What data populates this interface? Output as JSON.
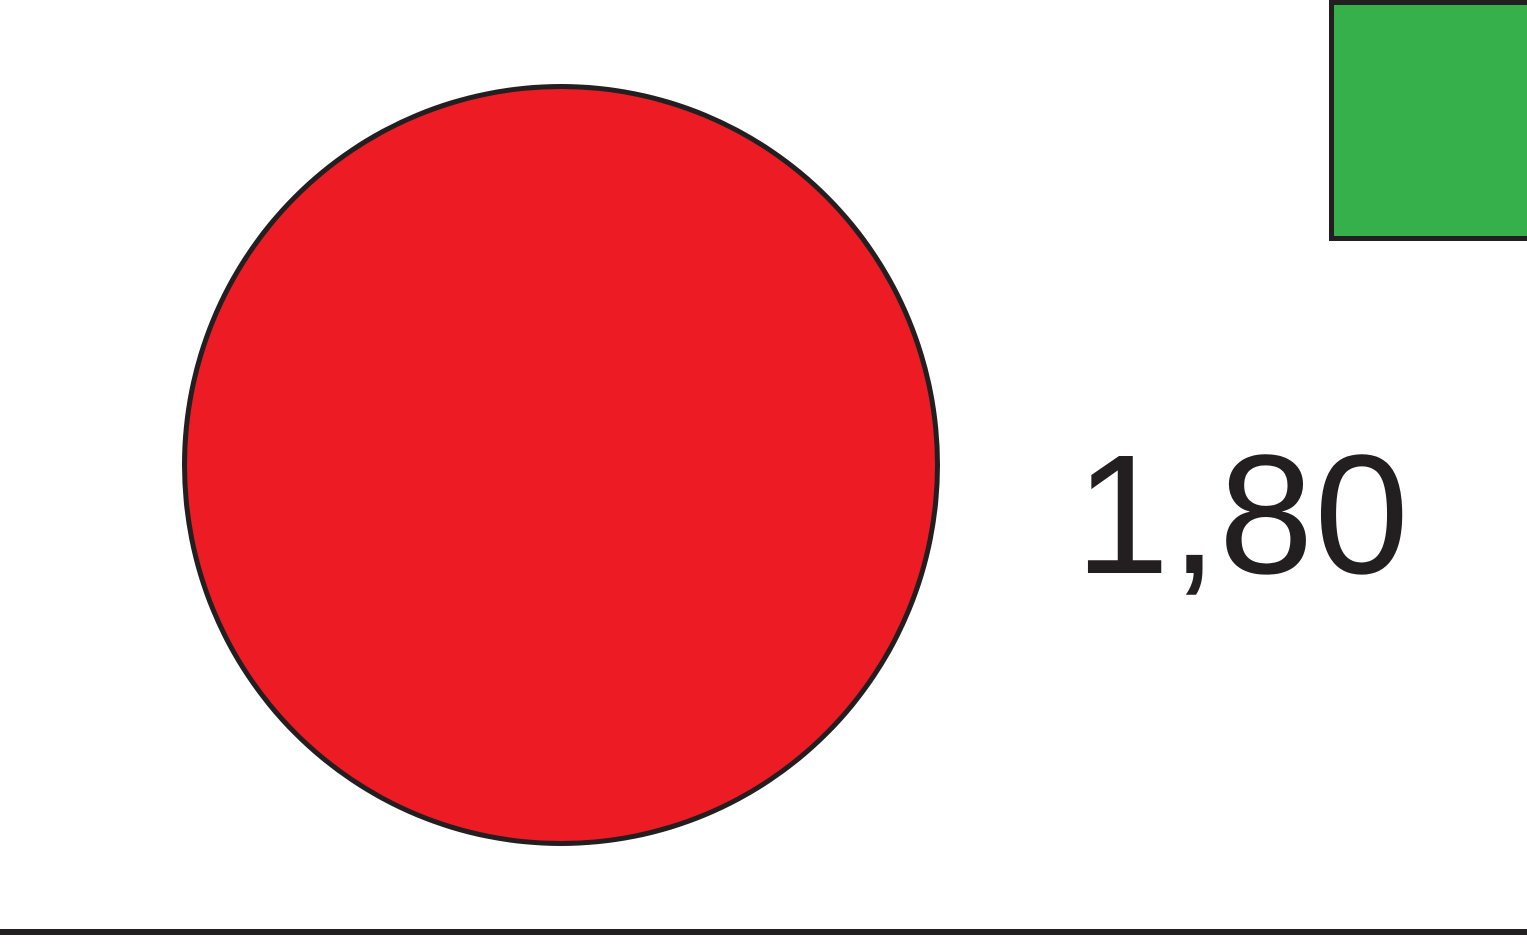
{
  "shapes": {
    "circle": {
      "fill": "#ed1c24",
      "stroke": "#231f20"
    },
    "square": {
      "fill": "#35b04a",
      "stroke": "#231f20"
    }
  },
  "label": {
    "text": "1,80",
    "color": "#231f20"
  },
  "line": {
    "color": "#231f20"
  }
}
